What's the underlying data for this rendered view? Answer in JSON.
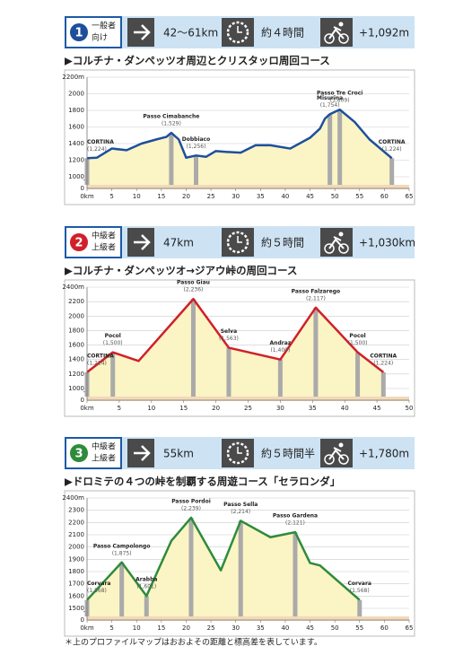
{
  "routes": [
    {
      "number": "1",
      "level": [
        "一般者",
        "向け"
      ],
      "distance": "42〜61km",
      "time": "約４時間",
      "gain": "+1,092m"
    },
    {
      "number": "2",
      "level": [
        "中級者",
        "上級者"
      ],
      "distance": "47km",
      "time": "約５時間",
      "gain": "+1,030km"
    },
    {
      "number": "3",
      "level": [
        "中級者",
        "上級者"
      ],
      "distance": "55km",
      "time": "約５時間半",
      "gain": "+1,780m"
    }
  ],
  "chart_data": [
    {
      "type": "line",
      "title": "▶コルチナ・ダンペッツオ周辺とクリスタッロ周回コース",
      "color": "#1d4f9c",
      "axis_break": true,
      "x": [
        0,
        2,
        5,
        8,
        11,
        14,
        16,
        17,
        18.5,
        20,
        22,
        24,
        26,
        28,
        31,
        34,
        37,
        41,
        45,
        47,
        48,
        49,
        51,
        54,
        57,
        61.5
      ],
      "values": [
        1224,
        1230,
        1340,
        1320,
        1400,
        1450,
        1480,
        1529,
        1450,
        1230,
        1256,
        1240,
        1310,
        1300,
        1290,
        1380,
        1380,
        1340,
        1470,
        1580,
        1700,
        1754,
        1809,
        1660,
        1450,
        1224
      ],
      "xlim": [
        0,
        65
      ],
      "xticks": [
        {
          "value": 0,
          "label": "0km"
        },
        5,
        10,
        15,
        20,
        25,
        30,
        35,
        40,
        45,
        50,
        55,
        60,
        65
      ],
      "ylim": [
        1000,
        2200
      ],
      "yticks": [
        0,
        1000,
        1200,
        1400,
        1600,
        1800,
        2000,
        {
          "value": 2200,
          "label": "2200m"
        }
      ],
      "annotations": [
        {
          "x": 0,
          "y": 1224,
          "name": "CORTINA",
          "label": "(1,224)"
        },
        {
          "x": 17,
          "y": 1529,
          "name": "Passo Cimabanche",
          "label": "(1,529)"
        },
        {
          "x": 22,
          "y": 1256,
          "name": "Dobbiaco",
          "label": "(1,256)"
        },
        {
          "x": 49,
          "y": 1754,
          "name": "Misurina",
          "label": "(1,754)"
        },
        {
          "x": 51,
          "y": 1809,
          "name": "Passo Tre Croci",
          "label": "(1,809)"
        },
        {
          "x": 61.5,
          "y": 1224,
          "name": "CORTINA",
          "label": "(1,224)"
        }
      ]
    },
    {
      "type": "line",
      "title": "▶コルチナ・ダンペッツオ→ジアウ峠の周回コース",
      "color": "#d0202a",
      "axis_break": true,
      "x": [
        0,
        4,
        8,
        16.5,
        22,
        30,
        35.5,
        42,
        46
      ],
      "values": [
        1224,
        1500,
        1380,
        2236,
        1563,
        1400,
        2117,
        1500,
        1224
      ],
      "xlim": [
        0,
        50
      ],
      "xticks": [
        {
          "value": 0,
          "label": "0km"
        },
        5,
        10,
        15,
        20,
        25,
        30,
        35,
        40,
        45,
        50
      ],
      "ylim": [
        1000,
        2400
      ],
      "yticks": [
        0,
        1000,
        1200,
        1400,
        1600,
        1800,
        2000,
        2200,
        {
          "value": 2400,
          "label": "2400m"
        }
      ],
      "annotations": [
        {
          "x": 0,
          "y": 1224,
          "name": "CORTINA",
          "label": "(1,224)"
        },
        {
          "x": 4,
          "y": 1500,
          "name": "Pocol",
          "label": "(1,500)"
        },
        {
          "x": 16.5,
          "y": 2236,
          "name": "Passo Giau",
          "label": "(2,236)"
        },
        {
          "x": 22,
          "y": 1563,
          "name": "Selva",
          "label": "(1,563)"
        },
        {
          "x": 30,
          "y": 1400,
          "name": "Andraz",
          "label": "(1,400)"
        },
        {
          "x": 35.5,
          "y": 2117,
          "name": "Passo Falzarego",
          "label": "(2,117)"
        },
        {
          "x": 42,
          "y": 1500,
          "name": "Pocol",
          "label": "(1,500)"
        },
        {
          "x": 46,
          "y": 1224,
          "name": "CORTINA",
          "label": "(1,224)"
        }
      ]
    },
    {
      "type": "line",
      "title": "▶ドロミテの４つの峠を制覇する周遊コース「セラロンダ」",
      "color": "#2e8b3a",
      "axis_break": true,
      "x": [
        0,
        7,
        12,
        17,
        21,
        27,
        31,
        37,
        42,
        45,
        47,
        55
      ],
      "values": [
        1568,
        1875,
        1601,
        2050,
        2239,
        1810,
        2214,
        2080,
        2121,
        1870,
        1850,
        1568
      ],
      "xlim": [
        0,
        65
      ],
      "xticks": [
        {
          "value": 0,
          "label": "0km"
        },
        5,
        10,
        15,
        20,
        25,
        30,
        35,
        40,
        45,
        50,
        55,
        60,
        65
      ],
      "ylim": [
        1500,
        2400
      ],
      "yticks": [
        0,
        1500,
        1600,
        1700,
        1800,
        1900,
        2000,
        2100,
        2200,
        2300,
        {
          "value": 2400,
          "label": "2400m"
        }
      ],
      "annotations": [
        {
          "x": 0,
          "y": 1568,
          "name": "Corvara",
          "label": "(1,568)"
        },
        {
          "x": 7,
          "y": 1875,
          "name": "Passo Campolongo",
          "label": "(1,875)"
        },
        {
          "x": 12,
          "y": 1601,
          "name": "Arabba",
          "label": "(1,601)"
        },
        {
          "x": 21,
          "y": 2239,
          "name": "Passo Pordoi",
          "label": "(2,239)"
        },
        {
          "x": 31,
          "y": 2214,
          "name": "Passo Sella",
          "label": "(2,214)"
        },
        {
          "x": 42,
          "y": 2121,
          "name": "Passo Gardena",
          "label": "(2,121)"
        },
        {
          "x": 55,
          "y": 1568,
          "name": "Corvara",
          "label": "(1,568)"
        }
      ]
    }
  ],
  "note": "＊上のプロファイルマップはおおよその距離と標高差を表しています。"
}
